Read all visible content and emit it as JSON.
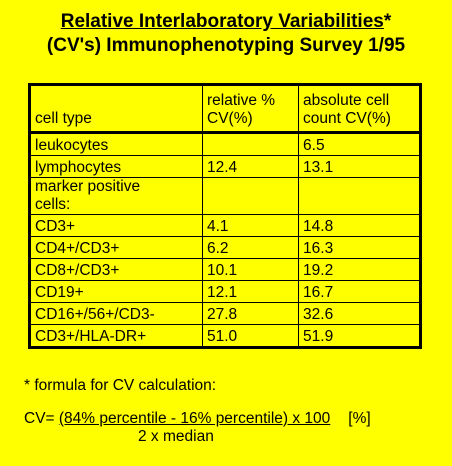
{
  "title": {
    "line1": "Relative Interlaboratory Variabilities",
    "line1_mark": "*",
    "line2": "(CV's) Immunophenotyping Survey 1/95"
  },
  "table": {
    "headers": {
      "cell_type": "cell type",
      "relative_cv_line1": "relative %",
      "relative_cv_line2": "CV(%)",
      "absolute_cv_line1": "absolute cell",
      "absolute_cv_line2": "count CV(%)"
    },
    "rows": [
      {
        "cell_type": "leukocytes",
        "relative_cv": "",
        "absolute_cv": "6.5"
      },
      {
        "cell_type": "lymphocytes",
        "relative_cv": "12.4",
        "absolute_cv": "13.1"
      },
      {
        "cell_type_line1": "marker positive",
        "cell_type_line2": "cells:",
        "relative_cv": "",
        "absolute_cv": ""
      },
      {
        "cell_type": "CD3+",
        "relative_cv": "4.1",
        "absolute_cv": "14.8"
      },
      {
        "cell_type": "CD4+/CD3+",
        "relative_cv": "6.2",
        "absolute_cv": "16.3"
      },
      {
        "cell_type": "CD8+/CD3+",
        "relative_cv": "10.1",
        "absolute_cv": "19.2"
      },
      {
        "cell_type": "CD19+",
        "relative_cv": "12.1",
        "absolute_cv": "16.7"
      },
      {
        "cell_type": "CD16+/56+/CD3-",
        "relative_cv": "27.8",
        "absolute_cv": "32.6"
      },
      {
        "cell_type": "CD3+/HLA-DR+",
        "relative_cv": "51.0",
        "absolute_cv": "51.9"
      }
    ]
  },
  "footnote": "* formula for CV calculation:",
  "formula": {
    "prefix": "CV= ",
    "numerator": "(84% percentile - 16% percentile) x 100",
    "unit": "[%]",
    "denominator": "2 x median"
  }
}
